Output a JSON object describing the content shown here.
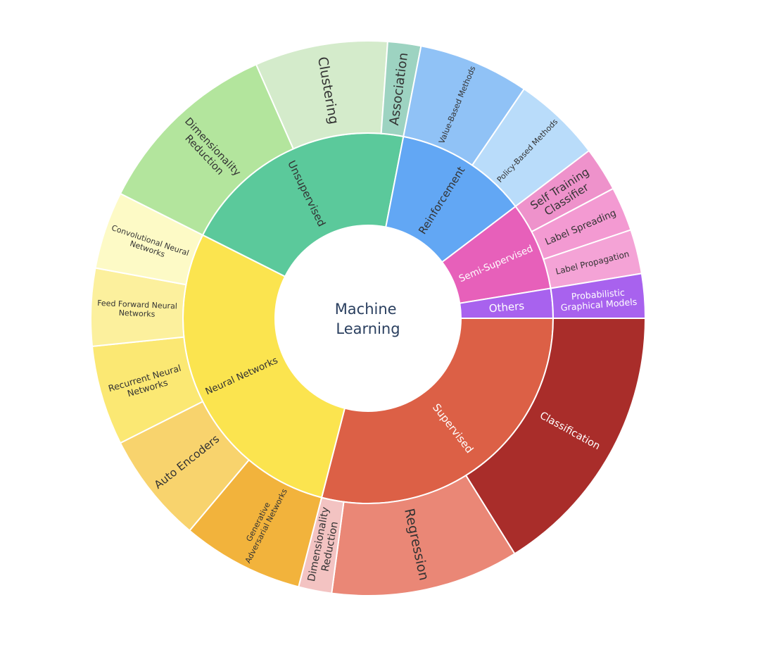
{
  "chart_data": {
    "type": "sunburst",
    "title": "",
    "root": "Machine Learning",
    "root_lines": [
      "Machine",
      "Learning"
    ],
    "rings": [
      "category",
      "subcategory"
    ],
    "categories": [
      {
        "name": "Supervised",
        "lines": [
          "Supervised"
        ],
        "color": "#dc6046",
        "children": [
          {
            "name": "Classification",
            "lines": [
              "Classification"
            ],
            "color": "#a92d2a",
            "value": 25
          },
          {
            "name": "Regression",
            "lines": [
              "Regression"
            ],
            "color": "#ea8776",
            "value": 17
          },
          {
            "name": "Dimensionality Reduction",
            "lines": [
              "Dimensionality",
              "Reduction"
            ],
            "color": "#f3c3c2",
            "value": 3
          }
        ]
      },
      {
        "name": "Neural Networks",
        "lines": [
          "Neural Networks"
        ],
        "color": "#fbe44f",
        "children": [
          {
            "name": "Generative Adversarial Networks",
            "lines": [
              "Generative",
              "Adversarial Networks"
            ],
            "color": "#f2b33c",
            "value": 11
          },
          {
            "name": "Auto Encoders",
            "lines": [
              "Auto Encoders"
            ],
            "color": "#f8d36d",
            "value": 10
          },
          {
            "name": "Recurrent Neural Networks",
            "lines": [
              "Recurrent Neural",
              "Networks"
            ],
            "color": "#fbe873",
            "value": 9
          },
          {
            "name": "Feed Forward Neural Networks",
            "lines": [
              "Feed Forward Neural",
              "Networks"
            ],
            "color": "#fcf09d",
            "value": 7
          },
          {
            "name": "Convolutional Neural Networks",
            "lines": [
              "Convolutional Neural",
              "Networks"
            ],
            "color": "#fdfac6",
            "value": 7
          }
        ]
      },
      {
        "name": "Unsupervised",
        "lines": [
          "Unsupervised"
        ],
        "color": "#5bc99b",
        "children": [
          {
            "name": "Dimensionality Reduction",
            "lines": [
              "Dimensionality",
              "Reduction"
            ],
            "color": "#b3e59d",
            "value": 17
          },
          {
            "name": "Clustering",
            "lines": [
              "Clustering"
            ],
            "color": "#d4ebcb",
            "value": 12
          },
          {
            "name": "Association",
            "lines": [
              "Association"
            ],
            "color": "#9dd3c1",
            "value": 3
          }
        ]
      },
      {
        "name": "Reinforcement",
        "lines": [
          "Reinforcement"
        ],
        "color": "#62a7f4",
        "children": [
          {
            "name": "Value-Based Methods",
            "lines": [
              "Value-Based Methods"
            ],
            "color": "#90c2f6",
            "value": 10
          },
          {
            "name": "Policy-Based Methods",
            "lines": [
              "Policy-Based Methods"
            ],
            "color": "#b9dcfa",
            "value": 8
          }
        ]
      },
      {
        "name": "Semi-Supervised",
        "lines": [
          "Semi-Supervised"
        ],
        "color": "#e760ba",
        "children": [
          {
            "name": "Self Training Classifier",
            "lines": [
              "Self Training",
              "Classifier"
            ],
            "color": "#ee92cb",
            "value": 4
          },
          {
            "name": "Label Spreading",
            "lines": [
              "Label Spreading"
            ],
            "color": "#f39ad2",
            "value": 4
          },
          {
            "name": "Label Propagation",
            "lines": [
              "Label Propagation"
            ],
            "color": "#f4a3d6",
            "value": 4
          }
        ]
      },
      {
        "name": "Others",
        "lines": [
          "Others"
        ],
        "color": "#a862ee",
        "children": [
          {
            "name": "Probabilistic Graphical Models",
            "lines": [
              "Probabilistic",
              "Graphical Models"
            ],
            "color": "#a862ee",
            "value": 4
          }
        ]
      }
    ]
  }
}
